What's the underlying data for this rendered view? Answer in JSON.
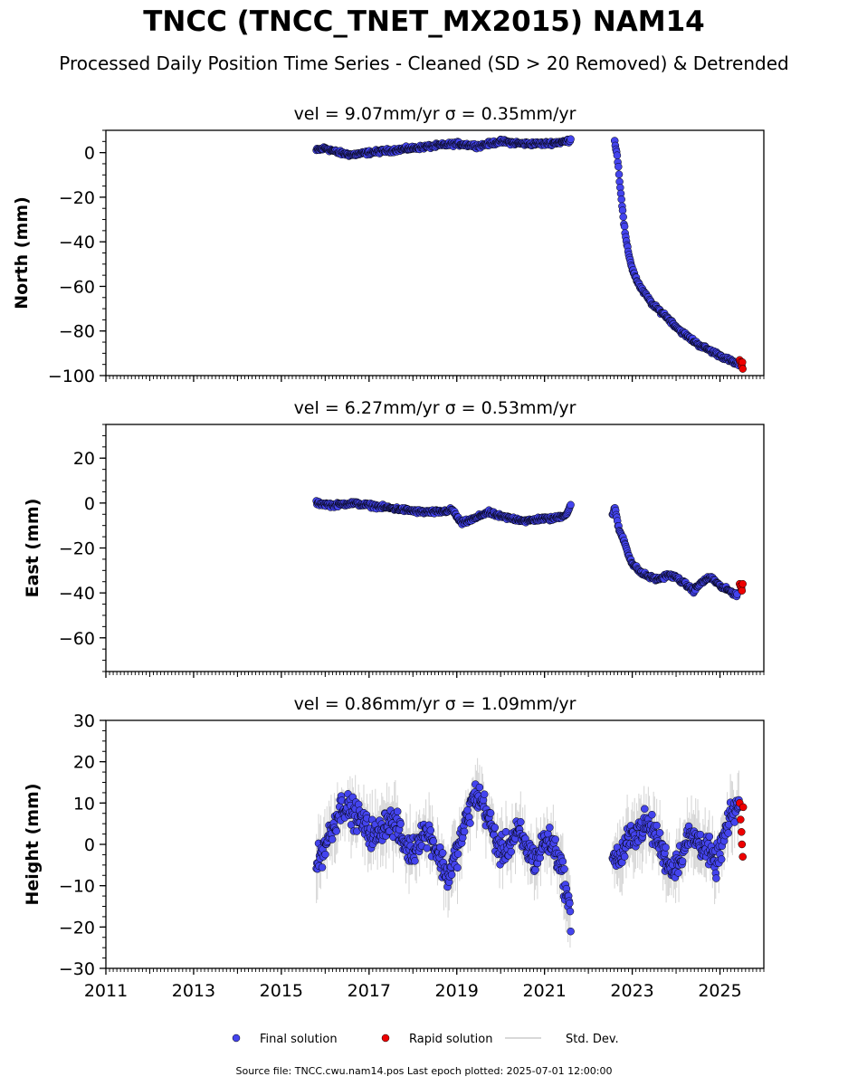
{
  "title": "TNCC (TNCC_TNET_MX2015) NAM14",
  "subtitle": "Processed Daily Position Time Series - Cleaned (SD > 20 Removed) & Detrended",
  "footer": "Source file: TNCC.cwu.nam14.pos  Last epoch plotted: 2025-07-01 12:00:00",
  "legend": {
    "final_label": "Final solution",
    "rapid_label": "Rapid solution",
    "std_label": "Std. Dev."
  },
  "colors": {
    "final": "#4444ee",
    "final_edge": "#000000",
    "rapid": "#ee0000",
    "std": "#aaaaaa",
    "axis": "#000000"
  },
  "chart_data": [
    {
      "type": "scatter",
      "title": "vel = 9.07mm/yr   σ = 0.35mm/yr",
      "ylabel": "North (mm)",
      "xlim": [
        2011,
        2026
      ],
      "ylim": [
        -100,
        10
      ],
      "yticks": [
        0,
        -20,
        -40,
        -60,
        -80,
        -100
      ],
      "xticks": [
        2011,
        2013,
        2015,
        2017,
        2019,
        2021,
        2023,
        2025
      ],
      "show_xtick_labels": false,
      "series": [
        {
          "role": "final",
          "segments": [
            {
              "x": [
                2015.8,
                2016.0,
                2016.3,
                2016.6,
                2017.0,
                2017.5,
                2018.0,
                2018.5,
                2019.0,
                2019.5,
                2020.0,
                2020.5,
                2021.0,
                2021.5,
                2021.6
              ],
              "y": [
                1,
                2,
                0,
                -1,
                0,
                1,
                2,
                3,
                4,
                3,
                5,
                4,
                4,
                5,
                6
              ]
            },
            {
              "x": [
                2022.6,
                2022.65,
                2022.7,
                2022.75,
                2022.8,
                2022.85,
                2022.9,
                2023.0,
                2023.1,
                2023.2,
                2023.35,
                2023.5,
                2023.7,
                2023.9,
                2024.1,
                2024.3,
                2024.5,
                2024.7,
                2024.9,
                2025.1,
                2025.3,
                2025.45
              ],
              "y": [
                5,
                0,
                -10,
                -20,
                -30,
                -38,
                -44,
                -52,
                -57,
                -61,
                -65,
                -69,
                -72,
                -76,
                -80,
                -83,
                -86,
                -88,
                -90,
                -92,
                -94,
                -95
              ]
            }
          ]
        },
        {
          "role": "rapid",
          "segments": [
            {
              "x": [
                2025.45,
                2025.47,
                2025.49,
                2025.5,
                2025.51,
                2025.52
              ],
              "y": [
                -93,
                -94,
                -95,
                -96,
                -94,
                -97
              ]
            }
          ]
        }
      ]
    },
    {
      "type": "scatter",
      "title": "vel = 6.27mm/yr   σ = 0.53mm/yr",
      "ylabel": "East (mm)",
      "xlim": [
        2011,
        2026
      ],
      "ylim": [
        -75,
        35
      ],
      "yticks": [
        20,
        0,
        -20,
        -40,
        -60
      ],
      "xticks": [
        2011,
        2013,
        2015,
        2017,
        2019,
        2021,
        2023,
        2025
      ],
      "show_xtick_labels": false,
      "series": [
        {
          "role": "final",
          "segments": [
            {
              "x": [
                2015.8,
                2016.2,
                2016.6,
                2017.0,
                2017.4,
                2017.8,
                2018.2,
                2018.6,
                2018.9,
                2019.1,
                2019.4,
                2019.7,
                2020.0,
                2020.3,
                2020.6,
                2020.9,
                2021.2,
                2021.5,
                2021.6
              ],
              "y": [
                0,
                -1,
                0,
                -1,
                -2,
                -3,
                -4,
                -4,
                -3,
                -9,
                -7,
                -4,
                -6,
                -7,
                -8,
                -7,
                -7,
                -5,
                -1
              ]
            },
            {
              "x": [
                2022.55,
                2022.6,
                2022.65,
                2022.7,
                2022.8,
                2022.9,
                2023.0,
                2023.2,
                2023.4,
                2023.6,
                2023.8,
                2024.0,
                2024.2,
                2024.4,
                2024.6,
                2024.8,
                2025.0,
                2025.2,
                2025.4
              ],
              "y": [
                -5,
                -2,
                -7,
                -12,
                -16,
                -22,
                -27,
                -31,
                -33,
                -34,
                -32,
                -33,
                -36,
                -39,
                -35,
                -33,
                -37,
                -39,
                -41
              ]
            }
          ]
        },
        {
          "role": "rapid",
          "segments": [
            {
              "x": [
                2025.45,
                2025.47,
                2025.49,
                2025.5,
                2025.52
              ],
              "y": [
                -36,
                -37,
                -38,
                -39,
                -36
              ]
            }
          ]
        }
      ]
    },
    {
      "type": "scatter",
      "title": "vel = 0.86mm/yr   σ = 1.09mm/yr",
      "ylabel": "Height (mm)",
      "xlim": [
        2011,
        2026
      ],
      "ylim": [
        -30,
        30
      ],
      "yticks": [
        30,
        20,
        10,
        0,
        -10,
        -20,
        -30
      ],
      "xticks": [
        2011,
        2013,
        2015,
        2017,
        2019,
        2021,
        2023,
        2025
      ],
      "show_xtick_labels": true,
      "series": [
        {
          "role": "final",
          "segments": [
            {
              "x": [
                2015.8,
                2016.0,
                2016.2,
                2016.4,
                2016.6,
                2016.8,
                2017.0,
                2017.2,
                2017.4,
                2017.6,
                2017.8,
                2018.0,
                2018.2,
                2018.4,
                2018.6,
                2018.8,
                2019.0,
                2019.2,
                2019.4,
                2019.6,
                2019.8,
                2020.0,
                2020.2,
                2020.4,
                2020.6,
                2020.8,
                2021.0,
                2021.2,
                2021.4,
                2021.6
              ],
              "y": [
                -5,
                0,
                5,
                10,
                8,
                6,
                3,
                2,
                6,
                5,
                0,
                -2,
                3,
                2,
                -3,
                -8,
                -2,
                5,
                12,
                10,
                4,
                -2,
                0,
                3,
                -1,
                -4,
                1,
                0,
                -6,
                -18
              ]
            },
            {
              "x": [
                2022.55,
                2022.7,
                2022.9,
                2023.1,
                2023.3,
                2023.5,
                2023.7,
                2023.9,
                2024.1,
                2024.3,
                2024.5,
                2024.7,
                2024.9,
                2025.1,
                2025.3,
                2025.45
              ],
              "y": [
                -2,
                -4,
                1,
                3,
                5,
                3,
                -2,
                -6,
                -3,
                2,
                1,
                -1,
                -5,
                2,
                8,
                10
              ]
            }
          ]
        },
        {
          "role": "rapid",
          "segments": [
            {
              "x": [
                2025.45,
                2025.47,
                2025.49,
                2025.5,
                2025.52,
                2025.53
              ],
              "y": [
                10,
                6,
                3,
                0,
                -3,
                9
              ]
            }
          ]
        }
      ]
    }
  ]
}
